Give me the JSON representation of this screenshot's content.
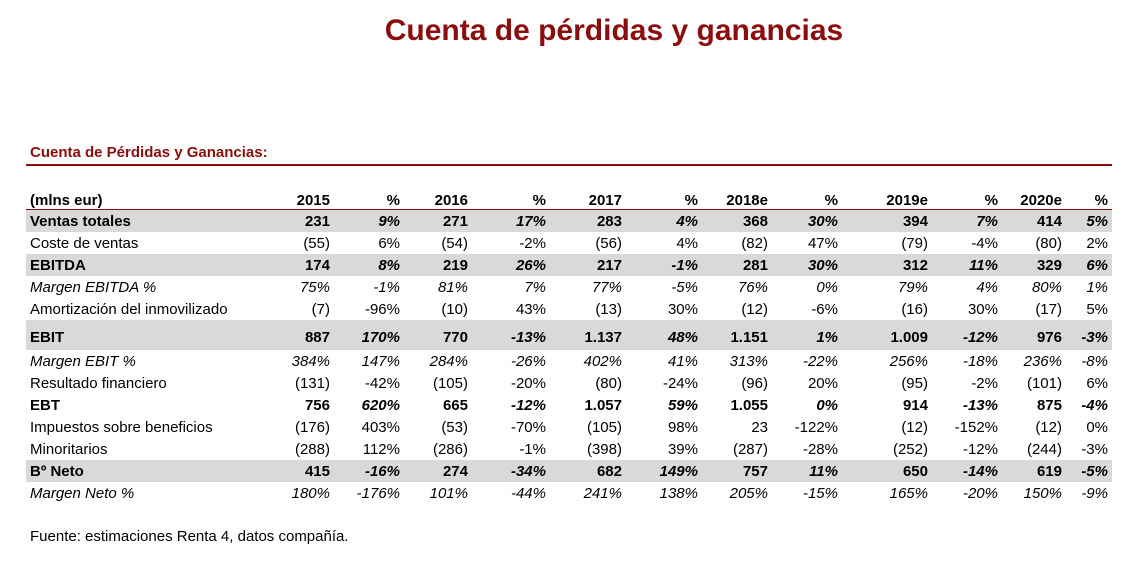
{
  "title": "Cuenta de pérdidas y ganancias",
  "subtitle": "Cuenta de Pérdidas y Ganancias:",
  "table": {
    "header": [
      "(mlns eur)",
      "2015",
      "%",
      "2016",
      "%",
      "2017",
      "%",
      "2018e",
      "%",
      "2019e",
      "%",
      "2020e",
      "%"
    ],
    "rows": [
      {
        "label": "Ventas totales",
        "cells": [
          "231",
          "9%",
          "271",
          "17%",
          "283",
          "4%",
          "368",
          "30%",
          "394",
          "7%",
          "414",
          "5%"
        ]
      },
      {
        "label": "Coste de ventas",
        "cells": [
          "(55)",
          "6%",
          "(54)",
          "-2%",
          "(56)",
          "4%",
          "(82)",
          "47%",
          "(79)",
          "-4%",
          "(80)",
          "2%"
        ]
      },
      {
        "label": "EBITDA",
        "cells": [
          "174",
          "8%",
          "219",
          "26%",
          "217",
          "-1%",
          "281",
          "30%",
          "312",
          "11%",
          "329",
          "6%"
        ]
      },
      {
        "label": "Margen EBITDA %",
        "cells": [
          "75%",
          "-1%",
          "81%",
          "7%",
          "77%",
          "-5%",
          "76%",
          "0%",
          "79%",
          "4%",
          "80%",
          "1%"
        ]
      },
      {
        "label": "Amortización del inmovilizado",
        "cells": [
          "(7)",
          "-96%",
          "(10)",
          "43%",
          "(13)",
          "30%",
          "(12)",
          "-6%",
          "(16)",
          "30%",
          "(17)",
          "5%"
        ]
      },
      {
        "label": "EBIT",
        "cells": [
          "887",
          "170%",
          "770",
          "-13%",
          "1.137",
          "48%",
          "1.151",
          "1%",
          "1.009",
          "-12%",
          "976",
          "-3%"
        ]
      },
      {
        "label": "Margen EBIT %",
        "cells": [
          "384%",
          "147%",
          "284%",
          "-26%",
          "402%",
          "41%",
          "313%",
          "-22%",
          "256%",
          "-18%",
          "236%",
          "-8%"
        ]
      },
      {
        "label": "Resultado financiero",
        "cells": [
          "(131)",
          "-42%",
          "(105)",
          "-20%",
          "(80)",
          "-24%",
          "(96)",
          "20%",
          "(95)",
          "-2%",
          "(101)",
          "6%"
        ]
      },
      {
        "label": "EBT",
        "cells": [
          "756",
          "620%",
          "665",
          "-12%",
          "1.057",
          "59%",
          "1.055",
          "0%",
          "914",
          "-13%",
          "875",
          "-4%"
        ]
      },
      {
        "label": "Impuestos sobre beneficios",
        "cells": [
          "(176)",
          "403%",
          "(53)",
          "-70%",
          "(105)",
          "98%",
          "23",
          "-122%",
          "(12)",
          "-152%",
          "(12)",
          "0%"
        ]
      },
      {
        "label": "Minoritarios",
        "cells": [
          "(288)",
          "112%",
          "(286)",
          "-1%",
          "(398)",
          "39%",
          "(287)",
          "-28%",
          "(252)",
          "-12%",
          "(244)",
          "-3%"
        ]
      },
      {
        "label": "Bº Neto",
        "cells": [
          "415",
          "-16%",
          "274",
          "-34%",
          "682",
          "149%",
          "757",
          "11%",
          "650",
          "-14%",
          "619",
          "-5%"
        ]
      },
      {
        "label": "Margen Neto %",
        "cells": [
          "180%",
          "-176%",
          "101%",
          "-44%",
          "241%",
          "138%",
          "205%",
          "-15%",
          "165%",
          "-20%",
          "150%",
          "-9%"
        ]
      }
    ]
  },
  "source": "Fuente: estimaciones Renta 4, datos compañía."
}
